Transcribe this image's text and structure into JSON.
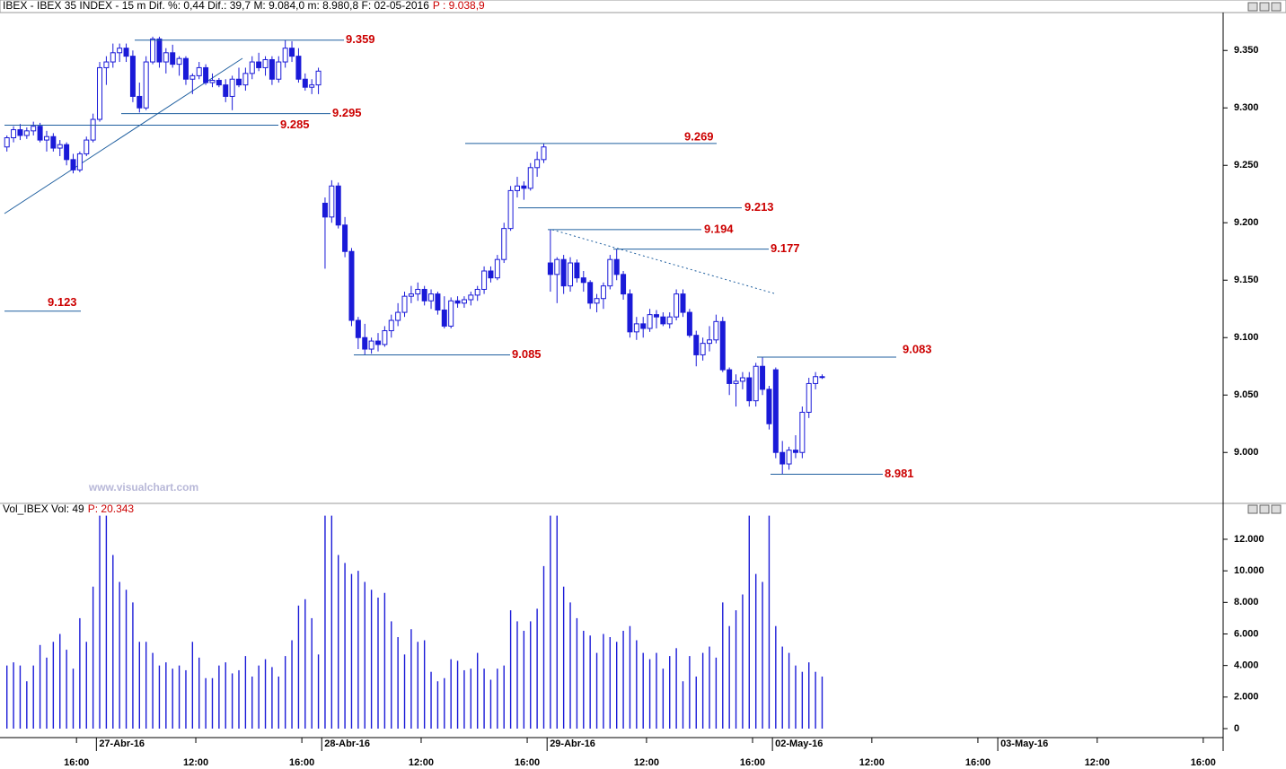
{
  "chart_data": [
    {
      "type": "candlestick",
      "title": "IBEX - IBEX 35 INDEX - 15 m Dif. %: 0,44 Dif.: 39,7 M: 9.084,0 m: 8.980,8 F: 02-05-2016",
      "price_label": "P : 9.038,9",
      "watermark": "www.visualchart.com",
      "color": "#1a1ad8",
      "ylim": [
        8958,
        9383
      ],
      "yticks": [
        {
          "value": 9000,
          "label": "9.000"
        },
        {
          "value": 9050,
          "label": "9.050"
        },
        {
          "value": 9100,
          "label": "9.100"
        },
        {
          "value": 9150,
          "label": "9.150"
        },
        {
          "value": 9200,
          "label": "9.200"
        },
        {
          "value": 9250,
          "label": "9.250"
        },
        {
          "value": 9300,
          "label": "9.300"
        },
        {
          "value": 9350,
          "label": "9.350"
        }
      ],
      "xlim": [
        0,
        184
      ],
      "xticks": [
        {
          "value": 11,
          "label": "16:00"
        },
        {
          "value": 14,
          "label": "27-Abr-16"
        },
        {
          "value": 29,
          "label": "12:00"
        },
        {
          "value": 45,
          "label": "16:00"
        },
        {
          "value": 48,
          "label": "28-Abr-16"
        },
        {
          "value": 63,
          "label": "12:00"
        },
        {
          "value": 79,
          "label": "16:00"
        },
        {
          "value": 82,
          "label": "29-Abr-16"
        },
        {
          "value": 97,
          "label": "12:00"
        },
        {
          "value": 113,
          "label": "16:00"
        },
        {
          "value": 116,
          "label": "02-May-16"
        },
        {
          "value": 131,
          "label": "12:00"
        },
        {
          "value": 147,
          "label": "16:00"
        },
        {
          "value": 150,
          "label": "03-May-16"
        },
        {
          "value": 165,
          "label": "12:00"
        },
        {
          "value": 181,
          "label": "16:00"
        }
      ],
      "levels": [
        {
          "value": 9359,
          "label": "9.359"
        },
        {
          "value": 9295,
          "label": "9.295"
        },
        {
          "value": 9285,
          "label": "9.285"
        },
        {
          "value": 9269,
          "label": "9.269"
        },
        {
          "value": 9213,
          "label": "9.213"
        },
        {
          "value": 9194,
          "label": "9.194"
        },
        {
          "value": 9177,
          "label": "9.177"
        },
        {
          "value": 9123,
          "label": "9.123"
        },
        {
          "value": 9085,
          "label": "9.085"
        },
        {
          "value": 9083,
          "label": "9.083"
        },
        {
          "value": 8981,
          "label": "8.981"
        }
      ],
      "ohlc": [
        [
          9266,
          9276,
          9262,
          9274
        ],
        [
          9274,
          9284,
          9270,
          9281
        ],
        [
          9281,
          9286,
          9272,
          9276
        ],
        [
          9276,
          9283,
          9273,
          9280
        ],
        [
          9280,
          9288,
          9276,
          9284
        ],
        [
          9284,
          9287,
          9270,
          9272
        ],
        [
          9272,
          9280,
          9262,
          9275
        ],
        [
          9275,
          9278,
          9262,
          9265
        ],
        [
          9265,
          9272,
          9258,
          9268
        ],
        [
          9268,
          9270,
          9250,
          9255
        ],
        [
          9255,
          9260,
          9243,
          9246
        ],
        [
          9246,
          9262,
          9244,
          9260
        ],
        [
          9260,
          9275,
          9258,
          9272
        ],
        [
          9272,
          9295,
          9270,
          9290
        ],
        [
          9290,
          9340,
          9288,
          9335
        ],
        [
          9335,
          9345,
          9320,
          9340
        ],
        [
          9340,
          9356,
          9335,
          9348
        ],
        [
          9348,
          9356,
          9340,
          9352
        ],
        [
          9352,
          9356,
          9340,
          9345
        ],
        [
          9345,
          9350,
          9305,
          9310
        ],
        [
          9310,
          9322,
          9296,
          9300
        ],
        [
          9300,
          9345,
          9298,
          9340
        ],
        [
          9340,
          9362,
          9338,
          9360
        ],
        [
          9360,
          9362,
          9335,
          9340
        ],
        [
          9340,
          9352,
          9330,
          9348
        ],
        [
          9348,
          9355,
          9335,
          9338
        ],
        [
          9338,
          9345,
          9328,
          9343
        ],
        [
          9343,
          9345,
          9320,
          9325
        ],
        [
          9325,
          9330,
          9312,
          9328
        ],
        [
          9328,
          9340,
          9325,
          9335
        ],
        [
          9335,
          9338,
          9320,
          9322
        ],
        [
          9322,
          9330,
          9318,
          9324
        ],
        [
          9324,
          9326,
          9318,
          9320
        ],
        [
          9320,
          9325,
          9305,
          9310
        ],
        [
          9310,
          9328,
          9298,
          9325
        ],
        [
          9325,
          9335,
          9318,
          9320
        ],
        [
          9320,
          9335,
          9315,
          9330
        ],
        [
          9330,
          9345,
          9325,
          9340
        ],
        [
          9340,
          9348,
          9332,
          9335
        ],
        [
          9335,
          9345,
          9328,
          9342
        ],
        [
          9342,
          9345,
          9320,
          9325
        ],
        [
          9325,
          9345,
          9322,
          9340
        ],
        [
          9340,
          9359,
          9335,
          9352
        ],
        [
          9352,
          9358,
          9340,
          9345
        ],
        [
          9345,
          9352,
          9322,
          9325
        ],
        [
          9325,
          9330,
          9315,
          9318
        ],
        [
          9318,
          9325,
          9312,
          9320
        ],
        [
          9320,
          9335,
          9312,
          9332
        ],
        [
          9217,
          9222,
          9160,
          9205
        ],
        [
          9205,
          9237,
          9200,
          9232
        ],
        [
          9232,
          9235,
          9195,
          9198
        ],
        [
          9198,
          9205,
          9170,
          9175
        ],
        [
          9175,
          9178,
          9110,
          9115
        ],
        [
          9115,
          9118,
          9090,
          9100
        ],
        [
          9100,
          9112,
          9085,
          9090
        ],
        [
          9090,
          9100,
          9086,
          9097
        ],
        [
          9097,
          9104,
          9088,
          9094
        ],
        [
          9094,
          9110,
          9092,
          9106
        ],
        [
          9106,
          9120,
          9100,
          9115
        ],
        [
          9115,
          9130,
          9110,
          9122
        ],
        [
          9122,
          9140,
          9118,
          9136
        ],
        [
          9136,
          9145,
          9130,
          9138
        ],
        [
          9138,
          9148,
          9132,
          9142
        ],
        [
          9142,
          9145,
          9128,
          9132
        ],
        [
          9132,
          9142,
          9125,
          9138
        ],
        [
          9138,
          9140,
          9120,
          9124
        ],
        [
          9124,
          9136,
          9108,
          9110
        ],
        [
          9110,
          9135,
          9108,
          9132
        ],
        [
          9132,
          9136,
          9126,
          9130
        ],
        [
          9130,
          9136,
          9126,
          9133
        ],
        [
          9133,
          9140,
          9128,
          9137
        ],
        [
          9137,
          9145,
          9132,
          9142
        ],
        [
          9142,
          9162,
          9138,
          9158
        ],
        [
          9158,
          9162,
          9148,
          9152
        ],
        [
          9152,
          9172,
          9150,
          9168
        ],
        [
          9168,
          9200,
          9165,
          9195
        ],
        [
          9195,
          9232,
          9193,
          9228
        ],
        [
          9228,
          9240,
          9222,
          9232
        ],
        [
          9232,
          9236,
          9220,
          9230
        ],
        [
          9230,
          9252,
          9228,
          9248
        ],
        [
          9248,
          9262,
          9240,
          9255
        ],
        [
          9255,
          9269,
          9252,
          9266
        ],
        [
          9165,
          9194,
          9140,
          9155
        ],
        [
          9155,
          9170,
          9130,
          9168
        ],
        [
          9168,
          9172,
          9138,
          9145
        ],
        [
          9145,
          9170,
          9140,
          9165
        ],
        [
          9165,
          9168,
          9148,
          9152
        ],
        [
          9152,
          9158,
          9140,
          9148
        ],
        [
          9148,
          9150,
          9125,
          9130
        ],
        [
          9130,
          9138,
          9122,
          9134
        ],
        [
          9134,
          9148,
          9125,
          9145
        ],
        [
          9145,
          9172,
          9142,
          9168
        ],
        [
          9168,
          9177,
          9150,
          9155
        ],
        [
          9155,
          9158,
          9133,
          9138
        ],
        [
          9138,
          9142,
          9100,
          9105
        ],
        [
          9105,
          9118,
          9098,
          9112
        ],
        [
          9112,
          9118,
          9100,
          9108
        ],
        [
          9108,
          9125,
          9105,
          9120
        ],
        [
          9120,
          9124,
          9108,
          9118
        ],
        [
          9118,
          9122,
          9110,
          9112
        ],
        [
          9112,
          9122,
          9108,
          9118
        ],
        [
          9118,
          9142,
          9115,
          9138
        ],
        [
          9138,
          9142,
          9118,
          9122
        ],
        [
          9122,
          9125,
          9100,
          9102
        ],
        [
          9102,
          9106,
          9075,
          9085
        ],
        [
          9085,
          9100,
          9080,
          9095
        ],
        [
          9095,
          9110,
          9088,
          9098
        ],
        [
          9098,
          9120,
          9095,
          9114
        ],
        [
          9114,
          9118,
          9070,
          9072
        ],
        [
          9072,
          9074,
          9050,
          9060
        ],
        [
          9060,
          9068,
          9040,
          9062
        ],
        [
          9062,
          9070,
          9055,
          9065
        ],
        [
          9065,
          9070,
          9040,
          9045
        ],
        [
          9045,
          9078,
          9040,
          9075
        ],
        [
          9075,
          9083,
          9050,
          9055
        ],
        [
          9055,
          9058,
          9020,
          9025
        ],
        [
          9072,
          9074,
          8995,
          9000
        ],
        [
          9000,
          9010,
          8981,
          8990
        ],
        [
          8990,
          9005,
          8985,
          9002
        ],
        [
          9002,
          9015,
          8995,
          9000
        ],
        [
          9000,
          9040,
          8995,
          9035
        ],
        [
          9035,
          9065,
          9030,
          9060
        ],
        [
          9060,
          9070,
          9055,
          9066
        ],
        [
          9066,
          9068,
          9064,
          9066
        ]
      ]
    },
    {
      "type": "bar",
      "title": "Vol_IBEX Vol: 49",
      "price_label": "P: 20.343",
      "color": "#1a1ad8",
      "ylim": [
        -455,
        13534
      ],
      "yticks": [
        0,
        {
          "value": 2000,
          "label": "2.000"
        },
        {
          "value": 4000,
          "label": "4.000"
        },
        {
          "value": 6000,
          "label": "6.000"
        },
        {
          "value": 8000,
          "label": "8.000"
        },
        {
          "value": 10000,
          "label": "10.000"
        },
        {
          "value": 12000,
          "label": "12.000"
        }
      ],
      "values": [
        4000,
        4200,
        4000,
        3000,
        4000,
        5300,
        4500,
        5500,
        6000,
        5000,
        3800,
        7000,
        5500,
        9000,
        13500,
        13500,
        11000,
        9300,
        8800,
        8000,
        5500,
        5500,
        4800,
        4000,
        4200,
        3800,
        4000,
        3700,
        5500,
        4500,
        3200,
        3200,
        4000,
        4200,
        3500,
        3700,
        4600,
        3300,
        4000,
        4400,
        3900,
        3300,
        4600,
        5600,
        7800,
        8200,
        7000,
        4700,
        13500,
        13500,
        11000,
        10500,
        9800,
        10000,
        9300,
        8800,
        8300,
        8600,
        6800,
        5800,
        4700,
        6300,
        5500,
        5600,
        3600,
        3000,
        3200,
        4400,
        4300,
        3700,
        3800,
        4800,
        3800,
        3100,
        3800,
        4000,
        7500,
        6800,
        6200,
        6800,
        7600,
        10300,
        13500,
        13500,
        9000,
        8000,
        7000,
        6200,
        5900,
        4800,
        6000,
        5800,
        5500,
        6200,
        6500,
        5600,
        4800,
        4400,
        4800,
        3800,
        4600,
        5100,
        3000,
        4600,
        3300,
        4800,
        5200,
        4500,
        8000,
        6500,
        7500,
        8500,
        13500,
        9800,
        9300,
        13500,
        6500,
        5200,
        4800,
        4000,
        3600,
        4200,
        3600,
        3300
      ]
    }
  ]
}
